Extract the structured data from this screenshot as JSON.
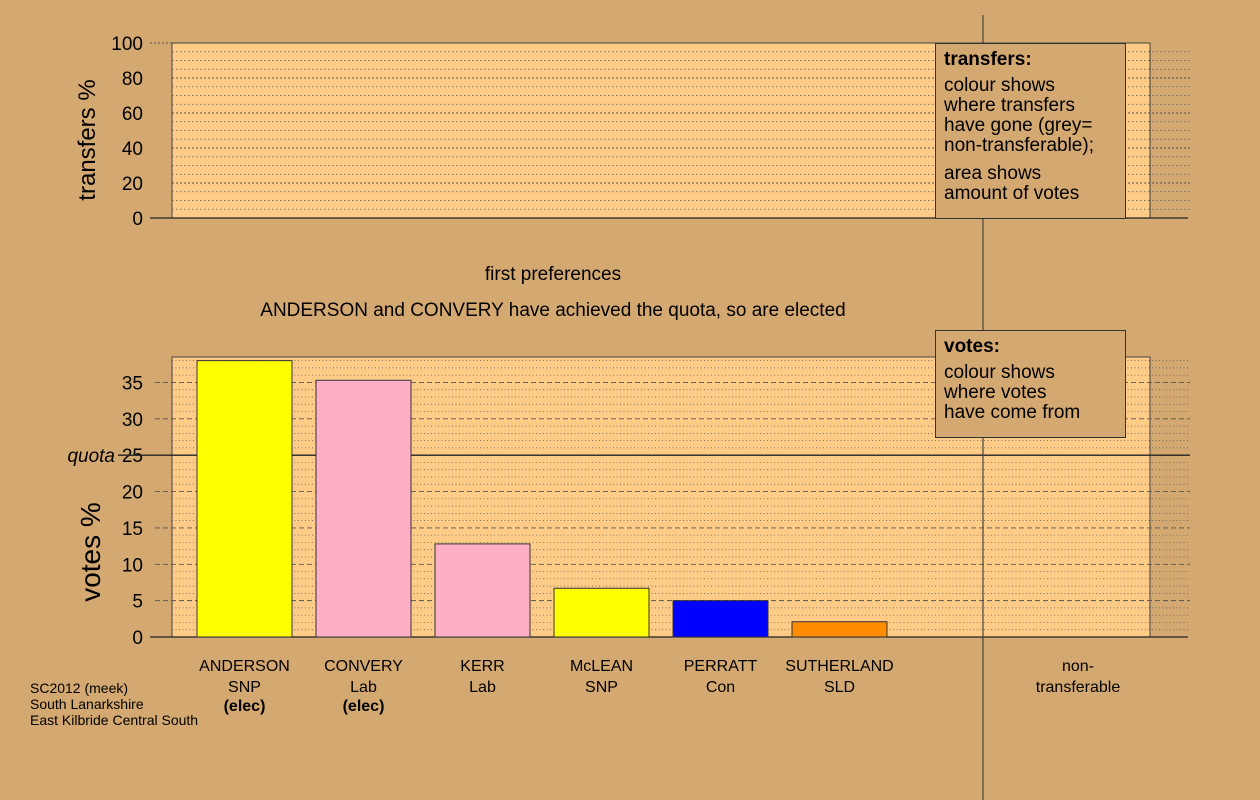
{
  "chart_data": [
    {
      "type": "bar",
      "panel": "transfers",
      "ylabel": "transfers %",
      "ylim": [
        0,
        100
      ],
      "yticks": [
        0,
        20,
        40,
        60,
        80,
        100
      ],
      "categories": [
        "ANDERSON SNP",
        "CONVERY Lab",
        "KERR Lab",
        "McLEAN SNP",
        "PERRATT Con",
        "SUTHERLAND SLD",
        "non-transferable"
      ],
      "values": [
        0,
        0,
        0,
        0,
        0,
        0,
        0
      ],
      "grid": true
    },
    {
      "type": "bar",
      "panel": "votes",
      "ylabel": "votes %",
      "ylim": [
        0,
        38.5
      ],
      "yticks": [
        0,
        5,
        10,
        15,
        20,
        25,
        30,
        35
      ],
      "quota": 25,
      "quota_label": "quota",
      "categories": [
        "ANDERSON",
        "CONVERY",
        "KERR",
        "McLEAN",
        "PERRATT",
        "SUTHERLAND",
        "non-transferable"
      ],
      "candidates": [
        {
          "name": "ANDERSON",
          "party": "SNP",
          "status": "(elec)",
          "value": 38.0,
          "color": "#ffff00"
        },
        {
          "name": "CONVERY",
          "party": "Lab",
          "status": "(elec)",
          "value": 35.3,
          "color": "#ffafc5"
        },
        {
          "name": "KERR",
          "party": "Lab",
          "status": "",
          "value": 12.8,
          "color": "#ffafc5"
        },
        {
          "name": "McLEAN",
          "party": "SNP",
          "status": "",
          "value": 6.7,
          "color": "#ffff00"
        },
        {
          "name": "PERRATT",
          "party": "Con",
          "status": "",
          "value": 5.0,
          "color": "#0000ff"
        },
        {
          "name": "SUTHERLAND",
          "party": "SLD",
          "status": "",
          "value": 2.1,
          "color": "#ff8c00"
        }
      ],
      "nontransferable": {
        "label_line1": "non-",
        "label_line2": "transferable",
        "value": 0
      },
      "grid": true
    }
  ],
  "stage_title": "first preferences",
  "stage_message": "ANDERSON and CONVERY have achieved the quota, so are elected",
  "legend_transfers": {
    "title": "transfers:",
    "lines1": [
      "colour shows",
      "where transfers",
      "have gone (grey=",
      "non-transferable);"
    ],
    "lines2": [
      "area shows",
      "amount of votes"
    ]
  },
  "legend_votes": {
    "title": "votes:",
    "lines": [
      "colour shows",
      "where votes",
      "have come from"
    ]
  },
  "footer": {
    "line1": "SC2012 (meek)",
    "line2": "South Lanarkshire",
    "line3": "East Kilbride Central South"
  },
  "colors": {
    "background": "#d4a871",
    "panel": "#ffcc88",
    "grid": "#555555"
  }
}
